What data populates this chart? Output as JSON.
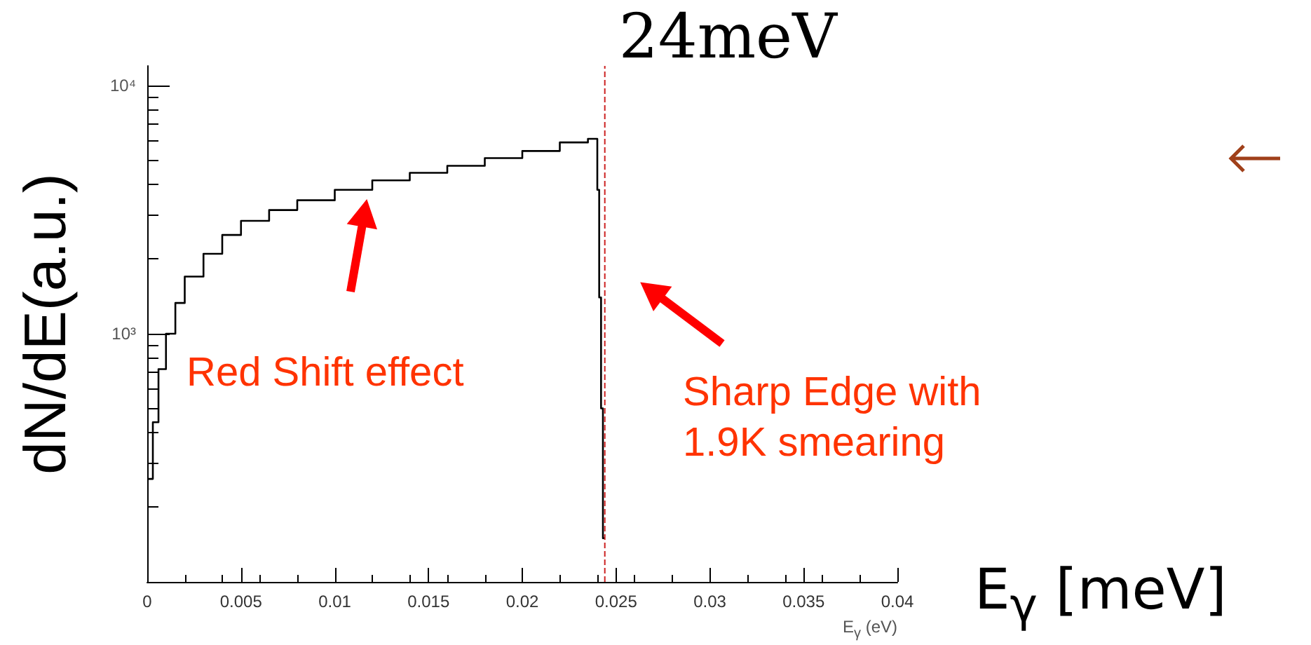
{
  "chart_data": {
    "type": "histogram",
    "bins": [
      0,
      0.0003,
      0.0006,
      0.001,
      0.0015,
      0.002,
      0.003,
      0.004,
      0.005,
      0.0065,
      0.008,
      0.01,
      0.012,
      0.014,
      0.016,
      0.018,
      0.02,
      0.022,
      0.0235,
      0.024,
      0.0241,
      0.0242,
      0.0243,
      0.0244
    ],
    "values": [
      260,
      440,
      720,
      1000,
      1330,
      1700,
      2100,
      2500,
      2850,
      3150,
      3450,
      3800,
      4150,
      4450,
      4750,
      5100,
      5450,
      5900,
      6100,
      3800,
      1400,
      500,
      150
    ],
    "color": "#000000",
    "xlabel": "E$_{γ}$ (eV)",
    "ylabel": "dN/dE(a.u.)",
    "xlim": [
      0,
      0.04
    ],
    "xticks": [
      0,
      0.005,
      0.01,
      0.015,
      0.02,
      0.025,
      0.03,
      0.035,
      0.04
    ],
    "ylim": [
      100,
      12000
    ],
    "yticks": [
      {
        "value": 1000,
        "label": "10³"
      },
      {
        "value": 10000,
        "label": "10⁴"
      }
    ],
    "log": "y",
    "grid": false,
    "ref_lines": [
      {
        "axis": "x",
        "value": 0.0244,
        "label": "24meV",
        "color": "#cc2222",
        "line_style": "dashed"
      }
    ],
    "annotations": [
      "Red Shift effect",
      "Sharp Edge with\n1.9K smearing",
      "E$_{γ}$ [meV]"
    ]
  }
}
